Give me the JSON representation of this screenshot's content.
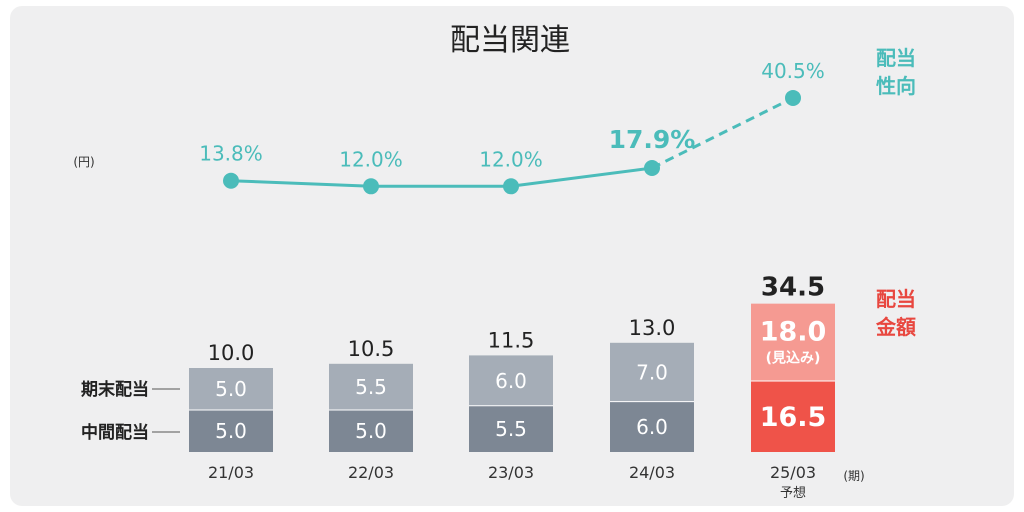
{
  "chart_data": {
    "type": "bar",
    "title": "配当関連",
    "y_unit": "(円)",
    "x_unit": "(期)",
    "categories": [
      "21/03",
      "22/03",
      "23/03",
      "24/03",
      "25/03"
    ],
    "category_notes": [
      "",
      "",
      "",
      "",
      "予想"
    ],
    "series": [
      {
        "name": "中間配当",
        "values": [
          5.0,
          5.0,
          5.5,
          6.0,
          null
        ]
      },
      {
        "name": "期末配当",
        "values": [
          5.0,
          5.5,
          6.0,
          7.0,
          null
        ]
      }
    ],
    "forecast": {
      "category": "25/03",
      "interim": "16.5",
      "year_end": "18.0",
      "year_end_note": "(見込み)",
      "total": "34.5"
    },
    "totals": [
      "10.0",
      "10.5",
      "11.5",
      "13.0",
      "34.5"
    ],
    "payout_ratio": {
      "labels": [
        "13.8%",
        "12.0%",
        "12.0%",
        "17.9%",
        "40.5%"
      ],
      "values": [
        13.8,
        12.0,
        12.0,
        17.9,
        40.5
      ],
      "highlight_index": 3,
      "forecast_index": 4
    },
    "legend": {
      "year_end": "期末配当",
      "interim": "中間配当",
      "payout_line1": "配当",
      "payout_line2": "性向",
      "amount_line1": "配当",
      "amount_line2": "金額"
    },
    "colors": {
      "interim": "#7d8794",
      "year_end": "#a5adb7",
      "forecast_interim": "#ef5349",
      "forecast_year_end": "#f59a92",
      "payout": "#4bbcba",
      "amount_legend": "#e8473f",
      "panel": "#efeff0"
    }
  }
}
